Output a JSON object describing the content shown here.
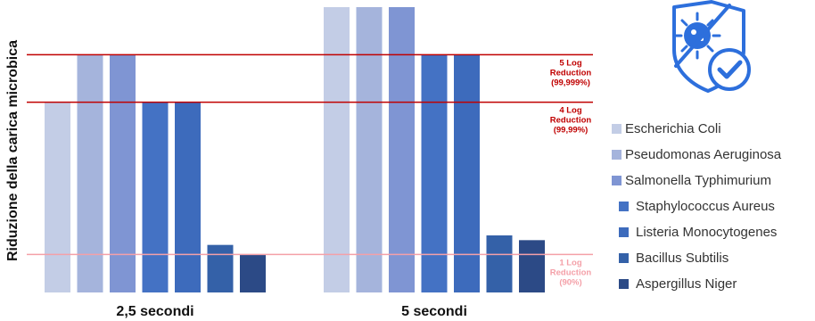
{
  "chart_data": {
    "type": "bar",
    "title": "",
    "xlabel": "",
    "ylabel": "Riduzione della carica microbica",
    "categories": [
      "2,5 secondi",
      "5 secondi"
    ],
    "ylim": [
      0,
      6
    ],
    "grid": false,
    "legend_position": "right",
    "series": [
      {
        "name": "Escherichia Coli",
        "color": "#c3cde6",
        "values": [
          4,
          6
        ]
      },
      {
        "name": "Pseudomonas Aeruginosa",
        "color": "#a5b4dc",
        "values": [
          5,
          6
        ]
      },
      {
        "name": "Salmonella Typhimurium",
        "color": "#7f95d3",
        "values": [
          5,
          6
        ]
      },
      {
        "name": "Staphylococcus Aureus",
        "color": "#4472c4",
        "values": [
          4,
          5
        ]
      },
      {
        "name": "Listeria Monocytogenes",
        "color": "#3d6bbc",
        "values": [
          4,
          5
        ]
      },
      {
        "name": "Bacillus Subtilis",
        "color": "#3461a8",
        "values": [
          1,
          1.2
        ]
      },
      {
        "name": "Aspergillus Niger",
        "color": "#2c4a86",
        "values": [
          0.8,
          1.1
        ]
      }
    ],
    "reference_lines": [
      {
        "value": 5,
        "label": [
          "5 Log",
          "Reduction",
          "(99,999%)"
        ],
        "color": "#c00000"
      },
      {
        "value": 4,
        "label": [
          "4 Log",
          "Reduction",
          "(99,99%)"
        ],
        "color": "#c00000"
      },
      {
        "value": 0.8,
        "label": [
          "1 Log",
          "Reduction",
          "(90%)"
        ],
        "color": "#f4a0a8"
      }
    ]
  },
  "logo_icon": "virus-shield-check-icon"
}
